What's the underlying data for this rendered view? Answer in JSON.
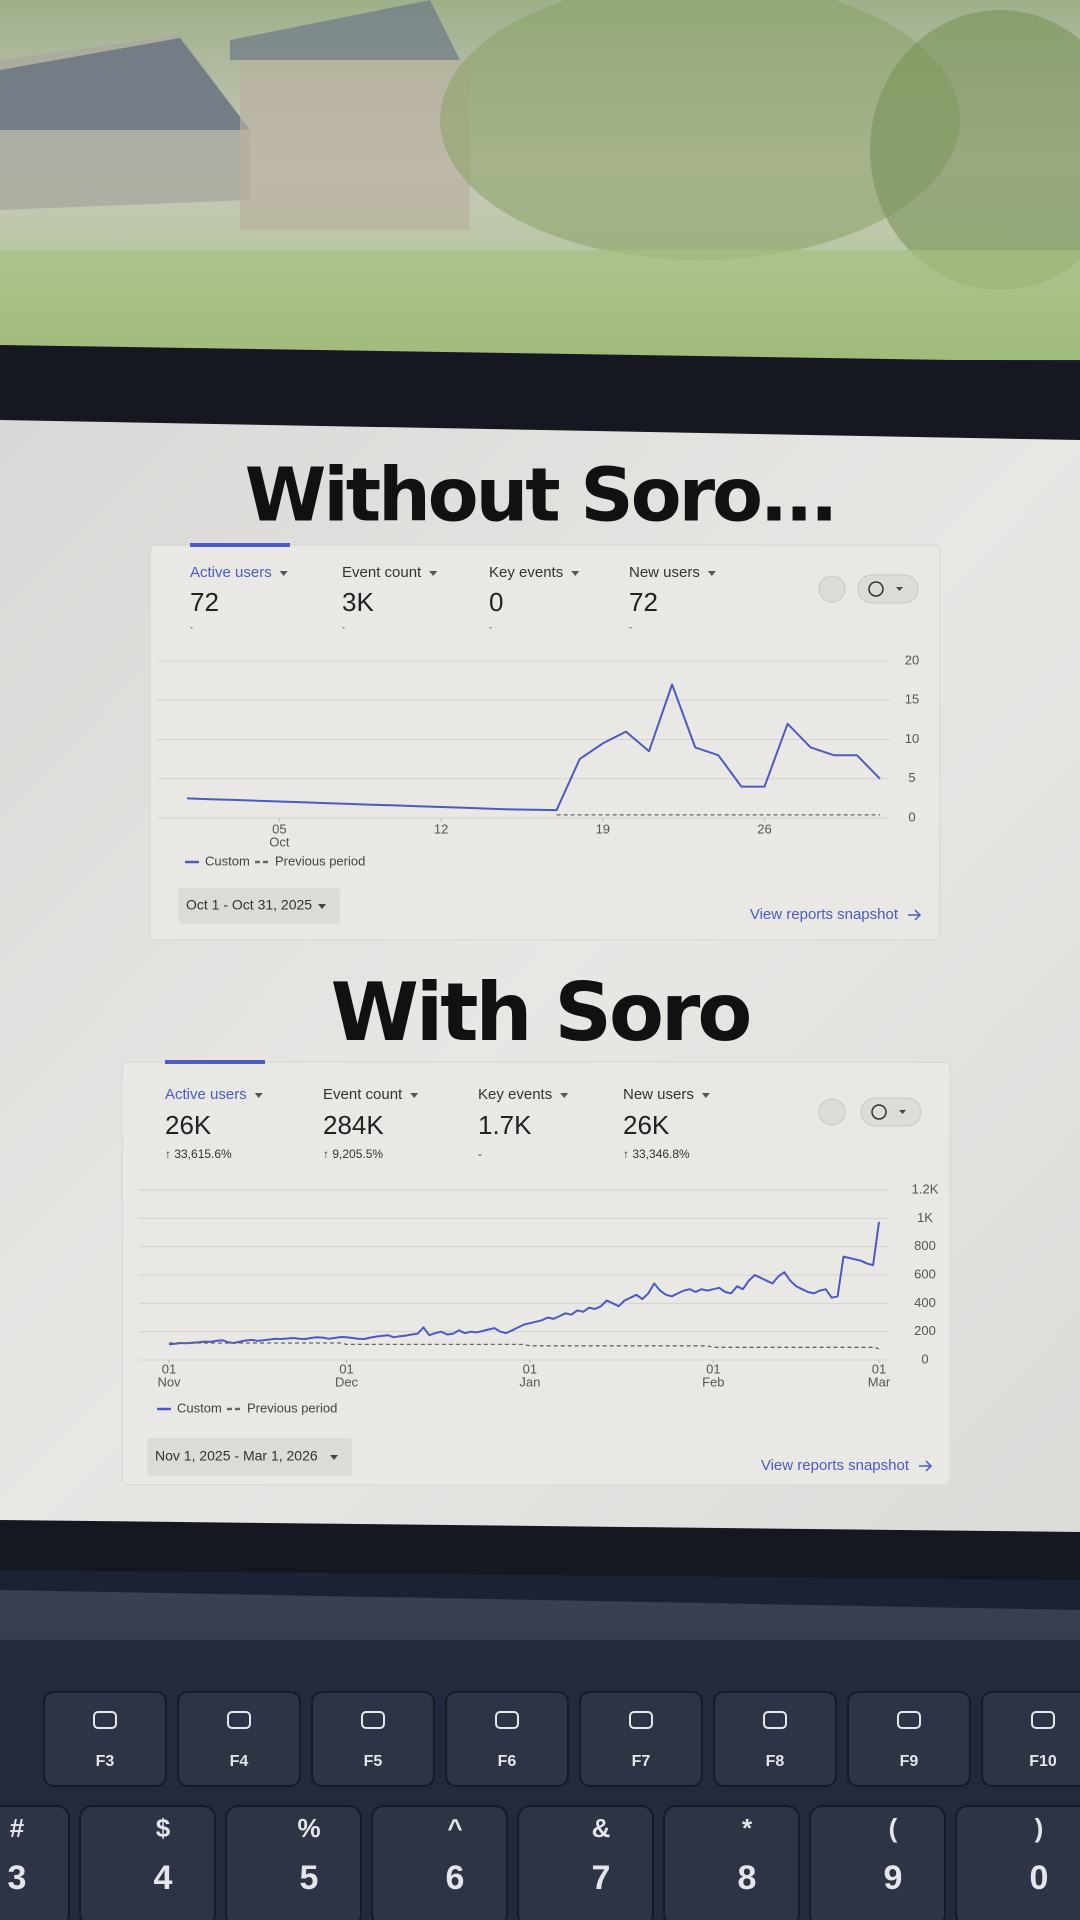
{
  "chart_data": [
    {
      "type": "line",
      "title": "Without Soro...",
      "metrics": [
        {
          "label": "Active users",
          "value": "72",
          "change": "-"
        },
        {
          "label": "Event count",
          "value": "3K",
          "change": "-"
        },
        {
          "label": "Key events",
          "value": "0",
          "change": "-"
        },
        {
          "label": "New users",
          "value": "72",
          "change": "-"
        }
      ],
      "series": [
        {
          "name": "Custom",
          "color": "#4a5cc4",
          "style": "solid",
          "values": [
            2.5,
            2.4,
            2.3,
            2.2,
            2.1,
            2.0,
            1.9,
            1.8,
            1.7,
            1.6,
            1.5,
            1.4,
            1.3,
            1.2,
            1.1,
            1.05,
            1,
            7.5,
            9.5,
            11,
            8.5,
            17,
            9,
            8,
            4,
            4,
            12,
            9,
            8,
            8,
            5
          ]
        },
        {
          "name": "Previous period",
          "color": "#666666",
          "style": "dashed",
          "values": [
            null,
            null,
            null,
            null,
            null,
            null,
            null,
            null,
            null,
            null,
            null,
            null,
            null,
            null,
            null,
            null,
            0.4,
            0.4,
            0.4,
            0.4,
            0.4,
            0.4,
            0.4,
            0.4,
            0.4,
            0.4,
            0.4,
            0.4,
            0.4,
            0.4,
            0.4
          ]
        }
      ],
      "xlim": [
        0,
        30
      ],
      "xticks": [
        {
          "value": 4,
          "label": [
            "05",
            "Oct"
          ]
        },
        {
          "value": 11,
          "label": "12"
        },
        {
          "value": 18,
          "label": "19"
        },
        {
          "value": 25,
          "label": "26"
        }
      ],
      "ylim": [
        0,
        20
      ],
      "yticks": [
        0,
        5,
        10,
        15,
        20
      ],
      "grid": true,
      "date_range": "Oct 1 - Oct 31, 2025",
      "link": "View reports snapshot"
    },
    {
      "type": "line",
      "title": "With Soro",
      "metrics": [
        {
          "label": "Active users",
          "value": "26K",
          "change": "↑ 33,615.6%"
        },
        {
          "label": "Event count",
          "value": "284K",
          "change": "↑ 9,205.5%"
        },
        {
          "label": "Key events",
          "value": "1.7K",
          "change": "-"
        },
        {
          "label": "New users",
          "value": "26K",
          "change": "↑ 33,346.8%"
        }
      ],
      "series": [
        {
          "name": "Custom",
          "color": "#4a5cc4",
          "style": "solid",
          "values": [
            110,
            115,
            120,
            118,
            122,
            125,
            130,
            128,
            135,
            140,
            125,
            120,
            130,
            138,
            142,
            135,
            140,
            145,
            150,
            148,
            152,
            155,
            150,
            148,
            155,
            160,
            158,
            150,
            155,
            162,
            160,
            155,
            150,
            148,
            158,
            165,
            170,
            175,
            160,
            168,
            172,
            180,
            185,
            230,
            175,
            190,
            200,
            180,
            185,
            210,
            190,
            200,
            195,
            205,
            215,
            225,
            200,
            190,
            210,
            230,
            250,
            260,
            270,
            280,
            300,
            290,
            310,
            330,
            320,
            350,
            340,
            370,
            360,
            380,
            420,
            400,
            380,
            420,
            440,
            460,
            430,
            470,
            540,
            490,
            460,
            450,
            470,
            490,
            500,
            480,
            500,
            490,
            500,
            510,
            480,
            470,
            520,
            500,
            560,
            600,
            580,
            560,
            540,
            590,
            620,
            560,
            520,
            500,
            480,
            470,
            490,
            500,
            440,
            450,
            730,
            720,
            710,
            700,
            680,
            670,
            975
          ]
        },
        {
          "name": "Previous period",
          "color": "#666666",
          "style": "dashed",
          "values": [
            120,
            120,
            120,
            120,
            120,
            120,
            120,
            120,
            120,
            120,
            120,
            120,
            120,
            120,
            120,
            120,
            120,
            120,
            120,
            120,
            120,
            120,
            120,
            120,
            120,
            120,
            120,
            120,
            120,
            120,
            110,
            110,
            110,
            110,
            110,
            110,
            110,
            110,
            110,
            110,
            110,
            110,
            110,
            110,
            110,
            110,
            110,
            110,
            110,
            110,
            110,
            110,
            110,
            110,
            110,
            110,
            110,
            110,
            110,
            110,
            110,
            100,
            100,
            100,
            100,
            100,
            100,
            100,
            100,
            100,
            100,
            100,
            100,
            100,
            100,
            100,
            100,
            100,
            100,
            100,
            100,
            100,
            100,
            100,
            100,
            100,
            100,
            100,
            100,
            100,
            100,
            100,
            90,
            90,
            90,
            90,
            90,
            90,
            90,
            90,
            90,
            90,
            90,
            90,
            90,
            90,
            90,
            90,
            90,
            90,
            90,
            90,
            90,
            90,
            90,
            90,
            90,
            90,
            90,
            90,
            80
          ]
        }
      ],
      "xlim": [
        0,
        120
      ],
      "xticks": [
        {
          "value": 0,
          "label": [
            "01",
            "Nov"
          ]
        },
        {
          "value": 30,
          "label": [
            "01",
            "Dec"
          ]
        },
        {
          "value": 61,
          "label": [
            "01",
            "Jan"
          ]
        },
        {
          "value": 92,
          "label": [
            "01",
            "Feb"
          ]
        },
        {
          "value": 120,
          "label": [
            "01",
            "Mar"
          ]
        }
      ],
      "ylim": [
        0,
        1200
      ],
      "yticks": [
        0,
        200,
        400,
        600,
        800,
        {
          "value": 1000,
          "label": "1K"
        },
        {
          "value": 1200,
          "label": "1.2K"
        }
      ],
      "grid": true,
      "date_range": "Nov 1, 2025 - Mar 1, 2026",
      "link": "View reports snapshot"
    }
  ],
  "keyboard": {
    "function_keys": [
      "F3",
      "F4",
      "F5",
      "F6",
      "F7",
      "F8",
      "F9",
      "F10"
    ],
    "number_keys": [
      {
        "shift": "#",
        "key": "3"
      },
      {
        "shift": "$",
        "key": "4"
      },
      {
        "shift": "%",
        "key": "5"
      },
      {
        "shift": "^",
        "key": "6"
      },
      {
        "shift": "&",
        "key": "7"
      },
      {
        "shift": "*",
        "key": "8"
      },
      {
        "shift": "(",
        "key": "9"
      },
      {
        "shift": ")",
        "key": "0"
      }
    ]
  }
}
